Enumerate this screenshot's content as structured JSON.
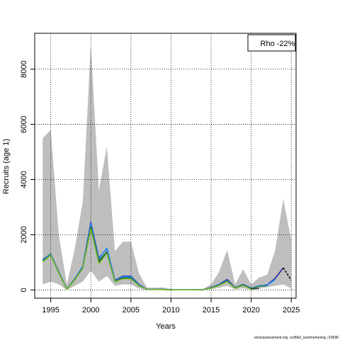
{
  "chart_data": {
    "type": "line",
    "title": "",
    "xlabel": "Years",
    "ylabel": "Recruits (age 1)",
    "xlim": [
      1993,
      2025.6
    ],
    "ylim": [
      -300,
      9300
    ],
    "x_ticks": [
      1995,
      2000,
      2005,
      2010,
      2015,
      2020,
      2025
    ],
    "y_ticks": [
      0,
      2000,
      4000,
      6000,
      8000
    ],
    "grid": true,
    "legend": {
      "placement": "top-right",
      "text": "Rho -22%"
    },
    "footer": "stockassessment.org, cod5b2_summertuning, r19696",
    "colors": {
      "band": "#bebebe",
      "series": [
        "#1f1fa0",
        "#1e90ff",
        "#2e8b57",
        "#1f3d1f",
        "#7cbf3a",
        "#9acd32"
      ],
      "terminal": "#000000"
    },
    "confidence_band": {
      "x": [
        1994,
        1995,
        1996,
        1997,
        1998,
        1999,
        2000,
        2001,
        2002,
        2003,
        2004,
        2005,
        2006,
        2007,
        2008,
        2009,
        2010,
        2011,
        2012,
        2013,
        2014,
        2015,
        2016,
        2017,
        2018,
        2019,
        2020,
        2021,
        2022,
        2023,
        2024,
        2025
      ],
      "lower": [
        200,
        300,
        200,
        0,
        150,
        300,
        700,
        300,
        500,
        150,
        200,
        200,
        50,
        0,
        0,
        0,
        0,
        0,
        0,
        0,
        0,
        30,
        80,
        150,
        20,
        60,
        10,
        50,
        100,
        150,
        200,
        50
      ],
      "upper": [
        5500,
        5800,
        2000,
        200,
        1500,
        3200,
        8900,
        3600,
        5200,
        1400,
        1750,
        1750,
        600,
        80,
        80,
        90,
        30,
        20,
        20,
        20,
        30,
        200,
        650,
        1450,
        200,
        750,
        200,
        450,
        550,
        1450,
        3300,
        1800
      ]
    },
    "series": [
      {
        "x": [
          1994,
          1995,
          1996,
          1997,
          1998,
          1999,
          2000,
          2001,
          2002,
          2003,
          2004,
          2005,
          2006,
          2007,
          2008,
          2009,
          2010,
          2011,
          2012,
          2013,
          2014,
          2015,
          2016,
          2017,
          2018,
          2019,
          2020,
          2021,
          2022,
          2023,
          2024
        ],
        "values": [
          1100,
          1300,
          650,
          30,
          400,
          850,
          2450,
          1150,
          1500,
          350,
          500,
          500,
          200,
          20,
          20,
          20,
          5,
          5,
          5,
          5,
          10,
          80,
          200,
          380,
          80,
          200,
          60,
          150,
          180,
          420,
          800
        ]
      },
      {
        "x": [
          1994,
          1995,
          1996,
          1997,
          1998,
          1999,
          2000,
          2001,
          2002,
          2003,
          2004,
          2005,
          2006,
          2007,
          2008,
          2009,
          2010,
          2011,
          2012,
          2013,
          2014,
          2015,
          2016,
          2017,
          2018,
          2019,
          2020,
          2021,
          2022,
          2023
        ],
        "values": [
          1080,
          1300,
          640,
          30,
          400,
          840,
          2400,
          1120,
          1520,
          330,
          480,
          480,
          190,
          20,
          20,
          20,
          5,
          5,
          5,
          5,
          10,
          80,
          190,
          350,
          80,
          190,
          60,
          150,
          170,
          380
        ]
      },
      {
        "x": [
          1994,
          1995,
          1996,
          1997,
          1998,
          1999,
          2000,
          2001,
          2002,
          2003,
          2004,
          2005,
          2006,
          2007,
          2008,
          2009,
          2010,
          2011,
          2012,
          2013,
          2014,
          2015,
          2016,
          2017,
          2018,
          2019,
          2020,
          2021,
          2022
        ],
        "values": [
          1050,
          1280,
          620,
          25,
          380,
          810,
          2300,
          1060,
          1380,
          310,
          440,
          440,
          170,
          15,
          15,
          15,
          4,
          4,
          4,
          4,
          8,
          70,
          170,
          330,
          70,
          180,
          50,
          130,
          150
        ]
      },
      {
        "x": [
          1994,
          1995,
          1996,
          1997,
          1998,
          1999,
          2000,
          2001,
          2002,
          2003,
          2004,
          2005,
          2006,
          2007,
          2008,
          2009,
          2010,
          2011,
          2012,
          2013,
          2014,
          2015,
          2016,
          2017,
          2018,
          2019,
          2020,
          2021
        ],
        "values": [
          1030,
          1260,
          610,
          25,
          370,
          790,
          2250,
          1000,
          1350,
          300,
          420,
          420,
          160,
          15,
          15,
          15,
          4,
          4,
          4,
          4,
          8,
          70,
          170,
          320,
          70,
          170,
          40,
          60
        ]
      },
      {
        "x": [
          1994,
          1995,
          1996,
          1997,
          1998,
          1999,
          2000,
          2001,
          2002,
          2003,
          2004,
          2005,
          2006,
          2007,
          2008,
          2009,
          2010,
          2011,
          2012,
          2013,
          2014,
          2015,
          2016,
          2017,
          2018,
          2019,
          2020
        ],
        "values": [
          1020,
          1250,
          600,
          20,
          360,
          780,
          2200,
          950,
          1320,
          290,
          400,
          400,
          150,
          15,
          15,
          15,
          4,
          4,
          4,
          4,
          8,
          60,
          160,
          300,
          60,
          160,
          20
        ]
      }
    ],
    "terminal_segment": {
      "x": [
        2024,
        2025
      ],
      "values": [
        800,
        350
      ]
    }
  }
}
